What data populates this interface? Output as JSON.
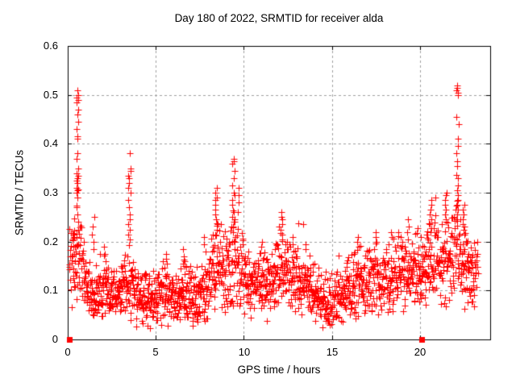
{
  "chart_data": {
    "type": "scatter",
    "title": "Day 180 of 2022, SRMTID for receiver alda",
    "xlabel": "GPS time / hours",
    "ylabel": "SRMTID / TECUs",
    "xlim": [
      0,
      24
    ],
    "ylim": [
      0,
      0.6
    ],
    "xticks": [
      0,
      5,
      10,
      15,
      20
    ],
    "xtick_labels": [
      "0",
      "5",
      "10",
      "15",
      "20"
    ],
    "yticks": [
      0,
      0.1,
      0.2,
      0.3,
      0.4,
      0.5,
      0.6
    ],
    "ytick_labels": [
      "0",
      "0.1",
      "0.2",
      "0.3",
      "0.4",
      "0.5",
      "0.6"
    ],
    "grid": {
      "show": true,
      "style": "dashed",
      "color": "#a0a0a0"
    },
    "marker": {
      "glyph": "plus",
      "color": "#ff0000",
      "size": 9
    },
    "axis_color": "#000000",
    "background": "#ffffff",
    "legend": "none",
    "baseline_envelope": [
      [
        0.1,
        0.14,
        0.045
      ],
      [
        0.45,
        0.17,
        0.055
      ],
      [
        0.6,
        0.2,
        0.06
      ],
      [
        0.8,
        0.13,
        0.04
      ],
      [
        1.2,
        0.1,
        0.03
      ],
      [
        1.7,
        0.095,
        0.03
      ],
      [
        2.2,
        0.1,
        0.032
      ],
      [
        2.7,
        0.09,
        0.03
      ],
      [
        3.2,
        0.105,
        0.035
      ],
      [
        3.5,
        0.14,
        0.05
      ],
      [
        3.8,
        0.1,
        0.035
      ],
      [
        4.2,
        0.075,
        0.028
      ],
      [
        5.0,
        0.08,
        0.028
      ],
      [
        5.6,
        0.09,
        0.03
      ],
      [
        6.1,
        0.08,
        0.028
      ],
      [
        6.6,
        0.1,
        0.032
      ],
      [
        7.1,
        0.085,
        0.03
      ],
      [
        7.7,
        0.1,
        0.035
      ],
      [
        8.2,
        0.13,
        0.045
      ],
      [
        8.5,
        0.16,
        0.05
      ],
      [
        8.9,
        0.13,
        0.045
      ],
      [
        9.4,
        0.17,
        0.055
      ],
      [
        9.8,
        0.14,
        0.045
      ],
      [
        10.3,
        0.12,
        0.035
      ],
      [
        11.0,
        0.115,
        0.035
      ],
      [
        11.6,
        0.12,
        0.04
      ],
      [
        12.1,
        0.145,
        0.045
      ],
      [
        12.6,
        0.12,
        0.035
      ],
      [
        13.2,
        0.12,
        0.035
      ],
      [
        13.8,
        0.1,
        0.032
      ],
      [
        14.4,
        0.08,
        0.028
      ],
      [
        15.0,
        0.08,
        0.028
      ],
      [
        15.6,
        0.095,
        0.03
      ],
      [
        16.2,
        0.11,
        0.035
      ],
      [
        16.9,
        0.12,
        0.035
      ],
      [
        17.6,
        0.125,
        0.04
      ],
      [
        18.3,
        0.12,
        0.038
      ],
      [
        19.0,
        0.14,
        0.045
      ],
      [
        19.6,
        0.15,
        0.045
      ],
      [
        20.1,
        0.14,
        0.04
      ],
      [
        20.6,
        0.16,
        0.05
      ],
      [
        21.1,
        0.15,
        0.045
      ],
      [
        21.6,
        0.165,
        0.05
      ],
      [
        22.1,
        0.19,
        0.055
      ],
      [
        22.6,
        0.15,
        0.045
      ],
      [
        23.0,
        0.135,
        0.04
      ],
      [
        23.3,
        0.15,
        0.04
      ]
    ],
    "spike_columns": [
      {
        "t": 0.35,
        "spread": 0.1,
        "values": [
          0.21,
          0.19,
          0.175,
          0.16,
          0.145,
          0.13
        ]
      },
      {
        "t": 0.55,
        "spread": 0.12,
        "values": [
          0.51,
          0.5,
          0.495,
          0.49,
          0.485,
          0.47,
          0.46,
          0.445,
          0.43,
          0.415,
          0.41,
          0.38,
          0.37,
          0.35,
          0.34,
          0.335,
          0.33,
          0.325,
          0.32,
          0.31,
          0.305,
          0.3,
          0.29,
          0.27,
          0.255,
          0.24,
          0.225,
          0.21
        ]
      },
      {
        "t": 1.45,
        "spread": 0.12,
        "values": [
          0.25,
          0.23,
          0.215,
          0.2,
          0.185
        ]
      },
      {
        "t": 2.1,
        "spread": 0.1,
        "values": [
          0.19,
          0.175,
          0.16
        ]
      },
      {
        "t": 3.5,
        "spread": 0.18,
        "values": [
          0.38,
          0.35,
          0.345,
          0.335,
          0.33,
          0.32,
          0.31,
          0.3,
          0.285,
          0.27,
          0.255,
          0.245,
          0.235,
          0.225,
          0.215,
          0.205
        ]
      },
      {
        "t": 5.6,
        "spread": 0.1,
        "values": [
          0.175,
          0.165,
          0.155
        ]
      },
      {
        "t": 6.6,
        "spread": 0.12,
        "values": [
          0.185,
          0.17,
          0.16,
          0.15
        ]
      },
      {
        "t": 7.8,
        "spread": 0.1,
        "values": [
          0.21,
          0.195,
          0.18
        ]
      },
      {
        "t": 8.45,
        "spread": 0.15,
        "values": [
          0.31,
          0.3,
          0.29,
          0.285,
          0.275,
          0.265,
          0.255,
          0.245,
          0.235,
          0.225,
          0.215
        ]
      },
      {
        "t": 9.4,
        "spread": 0.15,
        "values": [
          0.37,
          0.365,
          0.36,
          0.345,
          0.33,
          0.315,
          0.3,
          0.295,
          0.285,
          0.275,
          0.26,
          0.25,
          0.24,
          0.23,
          0.22
        ]
      },
      {
        "t": 9.65,
        "spread": 0.1,
        "values": [
          0.31,
          0.295,
          0.28,
          0.26
        ]
      },
      {
        "t": 11.0,
        "spread": 0.1,
        "values": [
          0.2,
          0.19
        ]
      },
      {
        "t": 12.15,
        "spread": 0.12,
        "values": [
          0.26,
          0.25,
          0.245,
          0.235,
          0.225,
          0.215,
          0.205
        ]
      },
      {
        "t": 12.8,
        "spread": 0.1,
        "values": [
          0.21,
          0.195,
          0.18
        ]
      },
      {
        "t": 13.5,
        "spread": 0.1,
        "values": [
          0.195,
          0.185
        ]
      },
      {
        "t": 16.5,
        "spread": 0.1,
        "values": [
          0.21,
          0.2,
          0.19
        ]
      },
      {
        "t": 17.5,
        "spread": 0.12,
        "values": [
          0.22,
          0.21,
          0.2
        ]
      },
      {
        "t": 18.4,
        "spread": 0.1,
        "values": [
          0.22,
          0.21
        ]
      },
      {
        "t": 19.3,
        "spread": 0.12,
        "values": [
          0.245,
          0.23,
          0.22,
          0.205
        ]
      },
      {
        "t": 20.6,
        "spread": 0.15,
        "values": [
          0.285,
          0.275,
          0.265,
          0.255,
          0.245,
          0.235
        ]
      },
      {
        "t": 21.5,
        "spread": 0.15,
        "values": [
          0.3,
          0.295,
          0.285,
          0.275,
          0.265,
          0.255,
          0.245
        ]
      },
      {
        "t": 22.15,
        "spread": 0.12,
        "values": [
          0.52,
          0.515,
          0.51,
          0.505,
          0.5,
          0.455,
          0.44,
          0.41,
          0.395,
          0.38,
          0.365,
          0.355,
          0.33,
          0.315,
          0.305,
          0.295,
          0.285,
          0.275,
          0.265,
          0.255,
          0.245
        ]
      },
      {
        "t": 22.5,
        "spread": 0.12,
        "values": [
          0.275,
          0.265,
          0.255,
          0.245,
          0.235,
          0.225,
          0.215
        ]
      }
    ],
    "square_markers": [
      {
        "t": 0.1,
        "v": 0
      },
      {
        "t": 20.1,
        "v": 0
      }
    ],
    "sampling": {
      "t_start": 0.08,
      "t_end": 23.3,
      "step_hours": 0.0125,
      "seed": 180,
      "outlier_prob": 0.04,
      "outlier_max": 0.07,
      "y_min": 0.02
    }
  }
}
